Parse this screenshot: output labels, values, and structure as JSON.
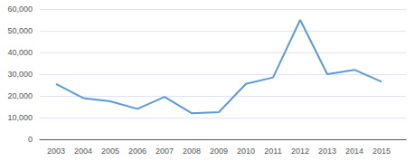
{
  "chart_data": {
    "type": "line",
    "x": [
      2003,
      2004,
      2005,
      2006,
      2007,
      2008,
      2009,
      2010,
      2011,
      2012,
      2013,
      2014,
      2015
    ],
    "values": [
      25500,
      19000,
      17500,
      14000,
      19500,
      12000,
      12500,
      25500,
      28500,
      55000,
      30000,
      32000,
      26500
    ],
    "color": "#5b9bd5",
    "xlim": [
      2002.4,
      2015.9
    ],
    "xticks": [
      2003,
      2004,
      2005,
      2006,
      2007,
      2008,
      2009,
      2010,
      2011,
      2012,
      2013,
      2014,
      2015
    ],
    "ylim": [
      0,
      60000
    ],
    "yticks": [
      0,
      {
        "value": 10000,
        "label": "10,000"
      },
      {
        "value": 20000,
        "label": "20,000"
      },
      {
        "value": 30000,
        "label": "30,000"
      },
      {
        "value": 40000,
        "label": "40,000"
      },
      {
        "value": 50000,
        "label": "50,000"
      },
      {
        "value": 60000,
        "label": "60,000"
      }
    ],
    "grid": true
  }
}
